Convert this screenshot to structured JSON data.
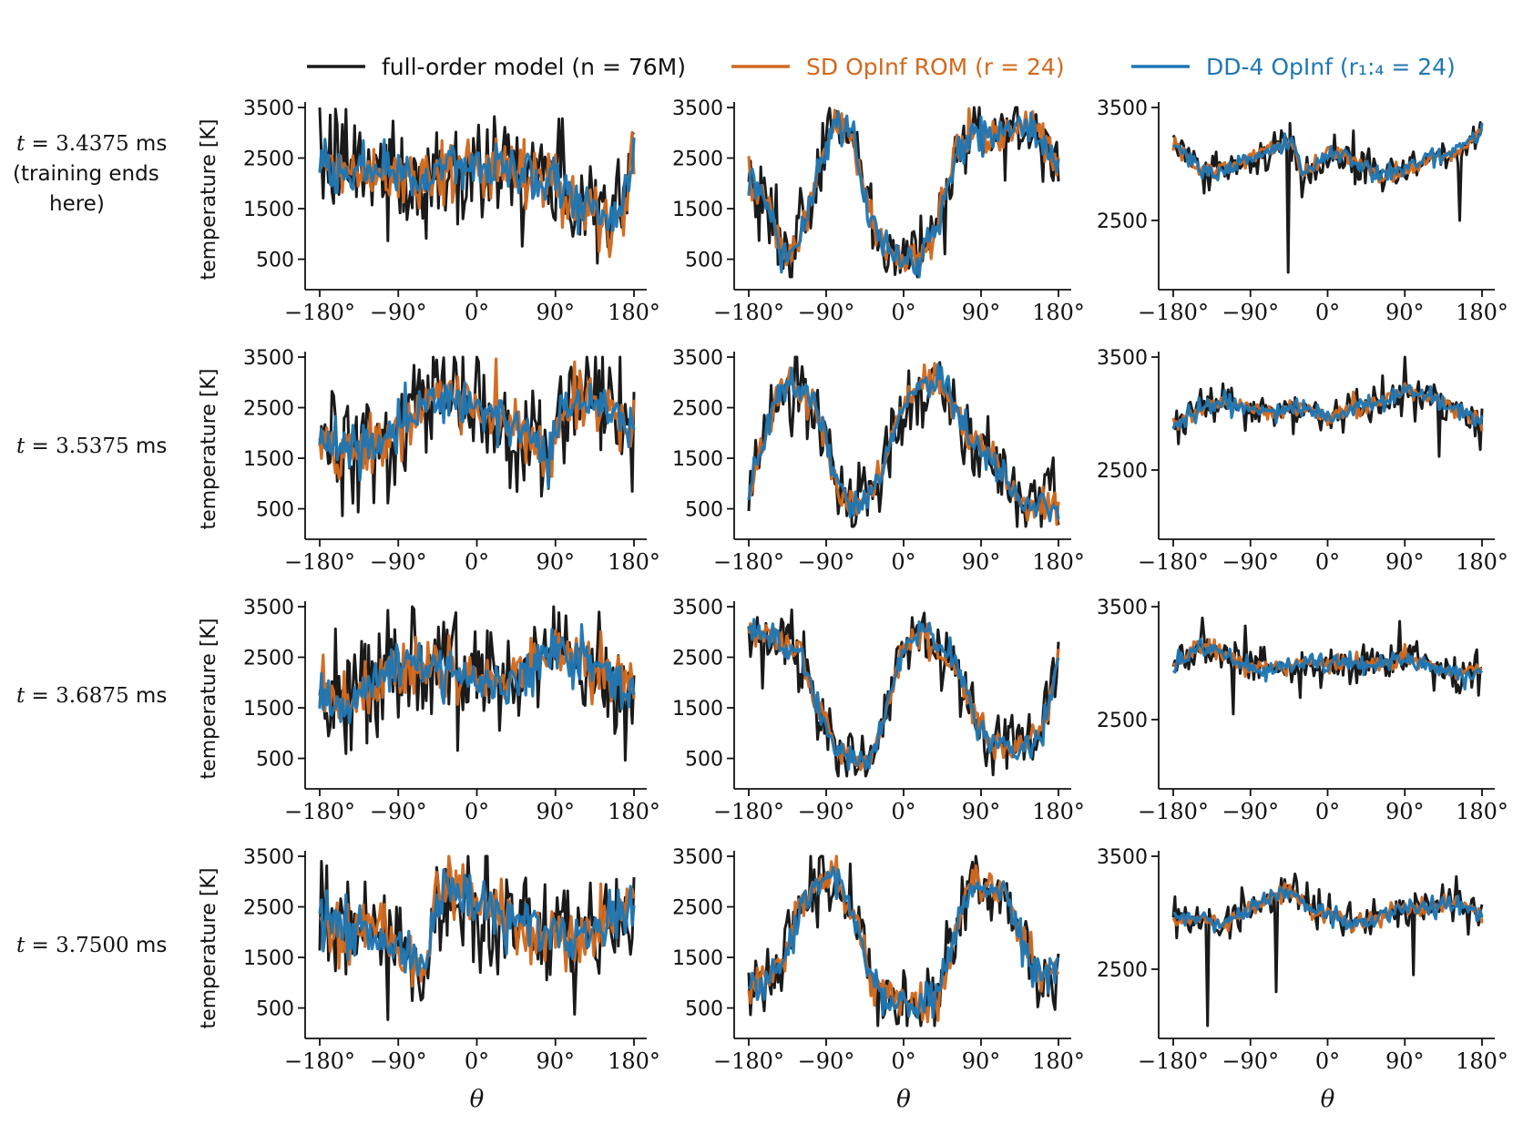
{
  "chart_data": {
    "type": "line",
    "legend": {
      "placement": "top-center",
      "entries": [
        {
          "key": "fom",
          "label": "full-order model (n = 76M)",
          "color": "#1a1a1a",
          "style": "solid"
        },
        {
          "key": "sd",
          "label": "SD OpInf ROM (r = 24)",
          "color": "#d2691e",
          "style": "solid"
        },
        {
          "key": "dd",
          "label": "DD-4 OpInf (r₁:₄ = 24)",
          "color": "#1f77b4",
          "style": "solid"
        }
      ]
    },
    "xlabel": "θ",
    "ylabel": "temperature [K]",
    "xlim": [
      -180,
      180
    ],
    "xticks": [
      -180,
      -90,
      0,
      90,
      180
    ],
    "xtick_labels": [
      "−180°",
      "−90°",
      "0°",
      "90°",
      "180°"
    ],
    "columns": [
      {
        "ylim": [
          150,
          3500
        ],
        "yticks": [
          500,
          1500,
          2500,
          3500
        ],
        "ytick_labels": [
          "500",
          "1500",
          "2500",
          "3500"
        ],
        "show_ylabel": true
      },
      {
        "ylim": [
          150,
          3500
        ],
        "yticks": [
          500,
          1500,
          2500,
          3500
        ],
        "ytick_labels": [
          "500",
          "1500",
          "2500",
          "3500"
        ],
        "show_ylabel": false
      },
      {
        "ylim": [
          2000,
          3500
        ],
        "yticks": [
          2500,
          3500
        ],
        "ytick_labels": [
          "2500",
          "3500"
        ],
        "show_ylabel": false
      }
    ],
    "rows": [
      {
        "label_prefix": "t = ",
        "label_value": "3.4375",
        "label_unit": " ms",
        "label_extra": [
          "(training ends",
          "here)"
        ]
      },
      {
        "label_prefix": "t = ",
        "label_value": "3.5375",
        "label_unit": " ms",
        "label_extra": []
      },
      {
        "label_prefix": "t = ",
        "label_value": "3.6875",
        "label_unit": " ms",
        "label_extra": []
      },
      {
        "label_prefix": "t = ",
        "label_value": "3.7500",
        "label_unit": " ms",
        "label_extra": []
      }
    ],
    "samples_per_curve": 181,
    "panels": [
      {
        "row": 0,
        "col": 0,
        "base": [
          [
            -180,
            2300
          ],
          [
            -150,
            2300
          ],
          [
            -120,
            2250
          ],
          [
            -90,
            2200
          ],
          [
            -60,
            2100
          ],
          [
            -30,
            2300
          ],
          [
            0,
            2300
          ],
          [
            30,
            2350
          ],
          [
            60,
            2200
          ],
          [
            90,
            2000
          ],
          [
            120,
            1700
          ],
          [
            150,
            1200
          ],
          [
            165,
            1400
          ],
          [
            180,
            2700
          ]
        ],
        "noise": {
          "fom": 1050,
          "sd": 520,
          "dd": 440
        }
      },
      {
        "row": 0,
        "col": 1,
        "base": [
          [
            -180,
            2100
          ],
          [
            -160,
            1500
          ],
          [
            -140,
            600
          ],
          [
            -120,
            900
          ],
          [
            -100,
            2200
          ],
          [
            -80,
            3200
          ],
          [
            -60,
            3000
          ],
          [
            -40,
            1400
          ],
          [
            -20,
            700
          ],
          [
            0,
            500
          ],
          [
            20,
            550
          ],
          [
            40,
            1200
          ],
          [
            60,
            2600
          ],
          [
            80,
            3000
          ],
          [
            100,
            2900
          ],
          [
            120,
            3000
          ],
          [
            140,
            3100
          ],
          [
            160,
            2800
          ],
          [
            180,
            2400
          ]
        ],
        "noise": {
          "fom": 650,
          "sd": 300,
          "dd": 300
        }
      },
      {
        "row": 0,
        "col": 2,
        "base": [
          [
            -180,
            3200
          ],
          [
            -150,
            2950
          ],
          [
            -120,
            2950
          ],
          [
            -90,
            3050
          ],
          [
            -60,
            3150
          ],
          [
            -40,
            3200
          ],
          [
            -30,
            2900
          ],
          [
            0,
            3100
          ],
          [
            30,
            3050
          ],
          [
            60,
            2900
          ],
          [
            90,
            2950
          ],
          [
            120,
            3050
          ],
          [
            150,
            3100
          ],
          [
            180,
            3300
          ]
        ],
        "noise": {
          "fom": 150,
          "sd": 70,
          "dd": 70
        }
      },
      {
        "row": 1,
        "col": 0,
        "base": [
          [
            -180,
            1800
          ],
          [
            -150,
            1600
          ],
          [
            -120,
            1800
          ],
          [
            -90,
            2100
          ],
          [
            -60,
            2500
          ],
          [
            -30,
            2700
          ],
          [
            0,
            2500
          ],
          [
            30,
            2200
          ],
          [
            60,
            2000
          ],
          [
            80,
            1500
          ],
          [
            100,
            2500
          ],
          [
            130,
            2700
          ],
          [
            160,
            2200
          ],
          [
            180,
            2000
          ]
        ],
        "noise": {
          "fom": 1000,
          "sd": 500,
          "dd": 430
        }
      },
      {
        "row": 1,
        "col": 1,
        "base": [
          [
            -180,
            800
          ],
          [
            -160,
            2000
          ],
          [
            -140,
            3000
          ],
          [
            -120,
            2800
          ],
          [
            -100,
            2500
          ],
          [
            -80,
            1000
          ],
          [
            -60,
            600
          ],
          [
            -40,
            700
          ],
          [
            -20,
            1500
          ],
          [
            0,
            2500
          ],
          [
            20,
            3000
          ],
          [
            40,
            3100
          ],
          [
            60,
            2500
          ],
          [
            80,
            1800
          ],
          [
            100,
            1500
          ],
          [
            120,
            1100
          ],
          [
            140,
            600
          ],
          [
            160,
            500
          ],
          [
            180,
            600
          ]
        ],
        "noise": {
          "fom": 650,
          "sd": 300,
          "dd": 280
        }
      },
      {
        "row": 1,
        "col": 2,
        "base": [
          [
            -180,
            2900
          ],
          [
            -150,
            3050
          ],
          [
            -120,
            3100
          ],
          [
            -90,
            3050
          ],
          [
            -60,
            3000
          ],
          [
            -30,
            3050
          ],
          [
            0,
            2950
          ],
          [
            30,
            3050
          ],
          [
            60,
            3100
          ],
          [
            90,
            3200
          ],
          [
            120,
            3150
          ],
          [
            150,
            3050
          ],
          [
            180,
            2900
          ]
        ],
        "noise": {
          "fom": 150,
          "sd": 70,
          "dd": 70
        }
      },
      {
        "row": 2,
        "col": 0,
        "base": [
          [
            -180,
            1800
          ],
          [
            -150,
            1500
          ],
          [
            -120,
            2000
          ],
          [
            -90,
            2400
          ],
          [
            -60,
            2300
          ],
          [
            -30,
            2300
          ],
          [
            0,
            2000
          ],
          [
            30,
            2000
          ],
          [
            60,
            2300
          ],
          [
            90,
            2600
          ],
          [
            120,
            2400
          ],
          [
            150,
            2200
          ],
          [
            180,
            1800
          ]
        ],
        "noise": {
          "fom": 1000,
          "sd": 500,
          "dd": 430
        }
      },
      {
        "row": 2,
        "col": 1,
        "base": [
          [
            -180,
            3000
          ],
          [
            -150,
            2900
          ],
          [
            -120,
            2600
          ],
          [
            -100,
            1500
          ],
          [
            -80,
            700
          ],
          [
            -60,
            500
          ],
          [
            -40,
            400
          ],
          [
            -20,
            1500
          ],
          [
            0,
            2700
          ],
          [
            20,
            3000
          ],
          [
            40,
            2700
          ],
          [
            60,
            2400
          ],
          [
            80,
            1500
          ],
          [
            100,
            800
          ],
          [
            120,
            700
          ],
          [
            140,
            800
          ],
          [
            160,
            1000
          ],
          [
            170,
            1700
          ],
          [
            180,
            2600
          ]
        ],
        "noise": {
          "fom": 550,
          "sd": 260,
          "dd": 240
        }
      },
      {
        "row": 2,
        "col": 2,
        "base": [
          [
            -180,
            2950
          ],
          [
            -150,
            3150
          ],
          [
            -120,
            3100
          ],
          [
            -90,
            2950
          ],
          [
            -60,
            2950
          ],
          [
            -30,
            3000
          ],
          [
            0,
            3000
          ],
          [
            30,
            3000
          ],
          [
            60,
            3000
          ],
          [
            90,
            3050
          ],
          [
            120,
            3000
          ],
          [
            150,
            2900
          ],
          [
            180,
            2950
          ]
        ],
        "noise": {
          "fom": 150,
          "sd": 70,
          "dd": 70
        }
      },
      {
        "row": 3,
        "col": 0,
        "base": [
          [
            -180,
            2200
          ],
          [
            -150,
            2000
          ],
          [
            -120,
            2000
          ],
          [
            -90,
            1700
          ],
          [
            -60,
            1200
          ],
          [
            -45,
            2800
          ],
          [
            -30,
            2900
          ],
          [
            0,
            2600
          ],
          [
            30,
            2300
          ],
          [
            60,
            2100
          ],
          [
            90,
            2000
          ],
          [
            120,
            1800
          ],
          [
            150,
            2300
          ],
          [
            180,
            2500
          ]
        ],
        "noise": {
          "fom": 1050,
          "sd": 520,
          "dd": 440
        }
      },
      {
        "row": 3,
        "col": 1,
        "base": [
          [
            -180,
            900
          ],
          [
            -160,
            1000
          ],
          [
            -140,
            1500
          ],
          [
            -120,
            2500
          ],
          [
            -100,
            3000
          ],
          [
            -80,
            3100
          ],
          [
            -60,
            2500
          ],
          [
            -40,
            1200
          ],
          [
            -20,
            700
          ],
          [
            0,
            600
          ],
          [
            20,
            600
          ],
          [
            40,
            700
          ],
          [
            60,
            2000
          ],
          [
            80,
            3000
          ],
          [
            100,
            2900
          ],
          [
            120,
            2700
          ],
          [
            140,
            1800
          ],
          [
            160,
            1000
          ],
          [
            180,
            1400
          ]
        ],
        "noise": {
          "fom": 650,
          "sd": 300,
          "dd": 280
        }
      },
      {
        "row": 3,
        "col": 2,
        "base": [
          [
            -180,
            2950
          ],
          [
            -150,
            2950
          ],
          [
            -120,
            2900
          ],
          [
            -90,
            3050
          ],
          [
            -60,
            3150
          ],
          [
            -40,
            3200
          ],
          [
            -20,
            3000
          ],
          [
            0,
            3000
          ],
          [
            30,
            2900
          ],
          [
            60,
            2950
          ],
          [
            90,
            3050
          ],
          [
            120,
            3050
          ],
          [
            150,
            3100
          ],
          [
            180,
            2950
          ]
        ],
        "noise": {
          "fom": 150,
          "sd": 70,
          "dd": 70
        }
      }
    ],
    "spikes": [
      {
        "row": 0,
        "col": 2,
        "series": "fom",
        "x": -45,
        "y": 2040
      },
      {
        "row": 0,
        "col": 2,
        "series": "fom",
        "x": 155,
        "y": 2500
      },
      {
        "row": 3,
        "col": 2,
        "series": "fom",
        "x": -140,
        "y": 2000
      },
      {
        "row": 3,
        "col": 2,
        "series": "fom",
        "x": -60,
        "y": 2300
      },
      {
        "row": 3,
        "col": 2,
        "series": "fom",
        "x": 100,
        "y": 2450
      },
      {
        "row": 3,
        "col": 2,
        "series": "fom",
        "x": 150,
        "y": 3320
      },
      {
        "row": 2,
        "col": 2,
        "series": "fom",
        "x": -110,
        "y": 2550
      },
      {
        "row": 2,
        "col": 2,
        "series": "fom",
        "x": -95,
        "y": 3330
      },
      {
        "row": 2,
        "col": 2,
        "series": "fom",
        "x": 85,
        "y": 3370
      },
      {
        "row": 1,
        "col": 2,
        "series": "fom",
        "x": 90,
        "y": 3500
      },
      {
        "row": 1,
        "col": 2,
        "series": "fom",
        "x": 130,
        "y": 2620
      }
    ]
  }
}
